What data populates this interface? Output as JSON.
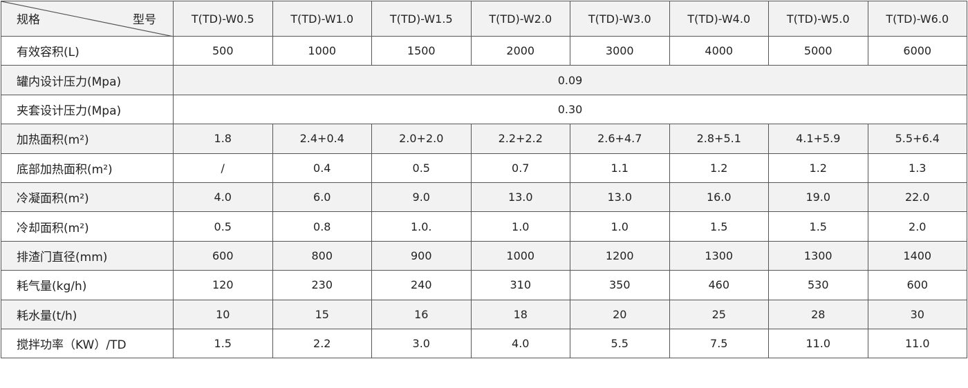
{
  "table": {
    "corner": {
      "left": "规格",
      "right": "型号"
    },
    "columns": [
      "T(TD)-W0.5",
      "T(TD)-W1.0",
      "T(TD)-W1.5",
      "T(TD)-W2.0",
      "T(TD)-W3.0",
      "T(TD)-W4.0",
      "T(TD)-W5.0",
      "T(TD)-W6.0"
    ],
    "rows": [
      {
        "label": "有效容积(L)",
        "values": [
          "500",
          "1000",
          "1500",
          "2000",
          "3000",
          "4000",
          "5000",
          "6000"
        ]
      },
      {
        "label": "罐内设计压力(Mpa)",
        "values": [
          "0.09"
        ]
      },
      {
        "label": "夹套设计压力(Mpa)",
        "values": [
          "0.30"
        ]
      },
      {
        "label": "加热面积(m²)",
        "values": [
          "1.8",
          "2.4+0.4",
          "2.0+2.0",
          "2.2+2.2",
          "2.6+4.7",
          "2.8+5.1",
          "4.1+5.9",
          "5.5+6.4"
        ]
      },
      {
        "label": "底部加热面积(m²)",
        "values": [
          "/",
          "0.4",
          "0.5",
          "0.7",
          "1.1",
          "1.2",
          "1.2",
          "1.3"
        ]
      },
      {
        "label": "冷凝面积(m²)",
        "values": [
          "4.0",
          "6.0",
          "9.0",
          "13.0",
          "13.0",
          "16.0",
          "19.0",
          "22.0"
        ]
      },
      {
        "label": "冷却面积(m²)",
        "values": [
          "0.5",
          "0.8",
          "1.0.",
          "1.0",
          "1.0",
          "1.5",
          "1.5",
          "2.0"
        ]
      },
      {
        "label": "排渣门直径(mm)",
        "values": [
          "600",
          "800",
          "900",
          "1000",
          "1200",
          "1300",
          "1300",
          "1400"
        ]
      },
      {
        "label": "耗气量(kg/h)",
        "values": [
          "120",
          "230",
          "240",
          "310",
          "350",
          "460",
          "530",
          "600"
        ]
      },
      {
        "label": "耗水量(t/h)",
        "values": [
          "10",
          "15",
          "16",
          "18",
          "20",
          "25",
          "28",
          "30"
        ]
      },
      {
        "label": "搅拌功率（KW）/TD",
        "values": [
          "1.5",
          "2.2",
          "3.0",
          "4.0",
          "5.5",
          "7.5",
          "11.0",
          "11.0"
        ]
      }
    ]
  }
}
